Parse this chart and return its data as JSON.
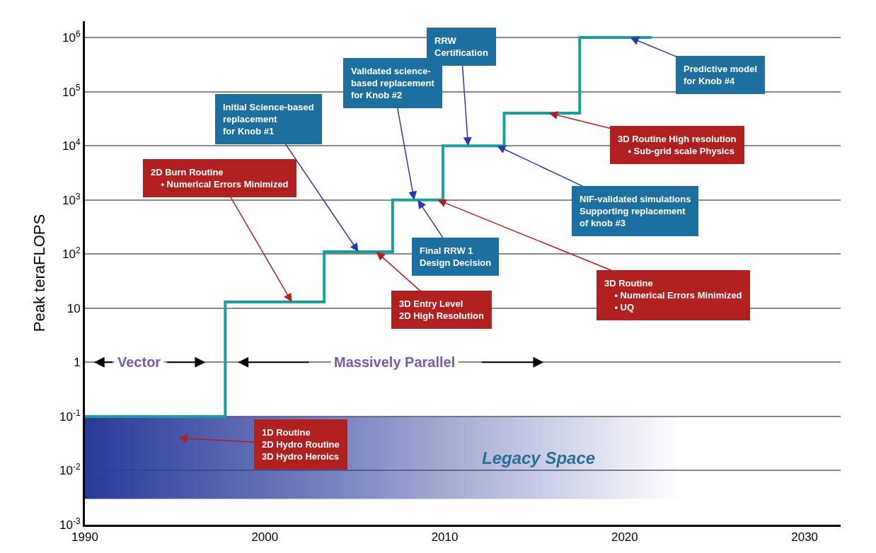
{
  "chart_data": {
    "type": "step",
    "ylabel": "Peak teraFLOPS",
    "x": [
      1990,
      1997.8,
      2003.3,
      2007.1,
      2009.9,
      2013.3,
      2017.5,
      2021.5
    ],
    "series": [
      {
        "color": "#1a9e9e",
        "values": [
          0.1,
          13,
          110,
          1000,
          10000,
          40000,
          1000000,
          1000000
        ]
      }
    ],
    "log": true,
    "xlim": [
      1990,
      2032
    ],
    "xticks": [
      1990,
      2000,
      2010,
      2020,
      2030
    ],
    "ylim": [
      0.001,
      2000000
    ],
    "yticks": [
      {
        "value": 0.001,
        "label": "10$^{-3}$"
      },
      {
        "value": 0.01,
        "label": "10$^{-2}$"
      },
      {
        "value": 0.1,
        "label": "10$^{-1}$"
      },
      1,
      10,
      {
        "value": 100,
        "label": "10$^{2}$"
      },
      {
        "value": 1000,
        "label": "10$^{3}$"
      },
      {
        "value": 10000,
        "label": "10$^{4}$"
      },
      {
        "value": 100000,
        "label": "10$^{5}$"
      },
      {
        "value": 1000000,
        "label": "10$^{6}$"
      }
    ],
    "grid": "y",
    "bands": [
      {
        "axis": "y",
        "from": 0.003,
        "to": 0.1,
        "label": "Legacy Space",
        "color": "#2a3a9a"
      }
    ],
    "annotations": [
      {
        "text": "2D Burn Routine\n    • Numerical Errors Minimized",
        "x": 2001.5,
        "y": 13
      },
      {
        "text": "Initial Science-based\nreplacement\nfor Knob #1",
        "x": 2005.2,
        "y": 110
      },
      {
        "text": "Validated science-\nbased replacement\nfor Knob #2",
        "x": 2008.3,
        "y": 1000
      },
      {
        "text": "RRW\nCertification",
        "x": 2011.3,
        "y": 10000
      },
      {
        "text": "Predictive model\nfor Knob #4",
        "x": 2020.3,
        "y": 1000000
      },
      {
        "text": "3D Routine High resolution\n    • Sub-grid scale Physics",
        "x": 2015.8,
        "y": 40000
      },
      {
        "text": "NIF-validated simulations\nSupporting replacement\nof knob #3",
        "x": 2012.9,
        "y": 10000
      },
      {
        "text": "Final RRW 1\nDesign Decision",
        "x": 2008.5,
        "y": 1000
      },
      {
        "text": "3D Routine\n    • Numerical Errors Minimized\n    • UQ",
        "x": 2009.6,
        "y": 1000
      },
      {
        "text": "3D Entry Level\n2D High Resolution",
        "x": 2006.2,
        "y": 110
      },
      "1D Routine\n2D Hydro Routine\n3D Hydro Heroics",
      "Vector",
      "Massively Parallel"
    ]
  }
}
